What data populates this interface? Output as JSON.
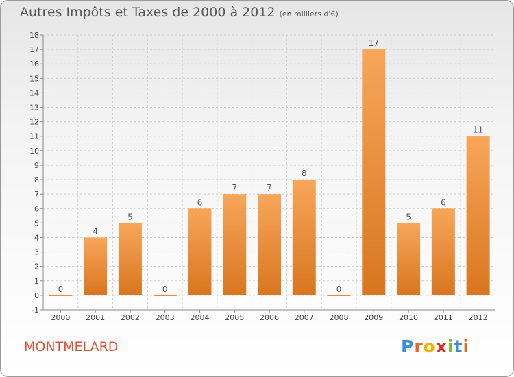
{
  "header": {
    "title": "Autres Impôts et Taxes de 2000 à 2012",
    "subtitle": "(en milliers d'€)"
  },
  "footer": {
    "city": "MONTMELARD",
    "logo_letters": [
      "P",
      "r",
      "o",
      "x",
      "i",
      "t",
      "i"
    ],
    "logo_colors": [
      "#3a8fd6",
      "#e36b1f",
      "#f2b200",
      "#d8322a",
      "#7ab82e",
      "#3a8fd6",
      "#e36b1f"
    ]
  },
  "chart_data": {
    "type": "bar",
    "categories": [
      "2000",
      "2001",
      "2002",
      "2003",
      "2004",
      "2005",
      "2006",
      "2007",
      "2008",
      "2009",
      "2010",
      "2011",
      "2012"
    ],
    "values": [
      0,
      4,
      5,
      0,
      6,
      7,
      7,
      8,
      0,
      17,
      5,
      6,
      11
    ],
    "data_labels": [
      "0",
      "4",
      "5",
      "0",
      "6",
      "7",
      "7",
      "8",
      "0",
      "17",
      "5",
      "6",
      "11"
    ],
    "ylim": [
      -1,
      18
    ],
    "yticks": [
      -1,
      0,
      1,
      2,
      3,
      4,
      5,
      6,
      7,
      8,
      9,
      10,
      11,
      12,
      13,
      14,
      15,
      16,
      17,
      18
    ],
    "grid": true,
    "bar_color_top": "#f7a65a",
    "bar_color_bottom": "#d9761f",
    "grid_color": "#cfcfcf"
  }
}
